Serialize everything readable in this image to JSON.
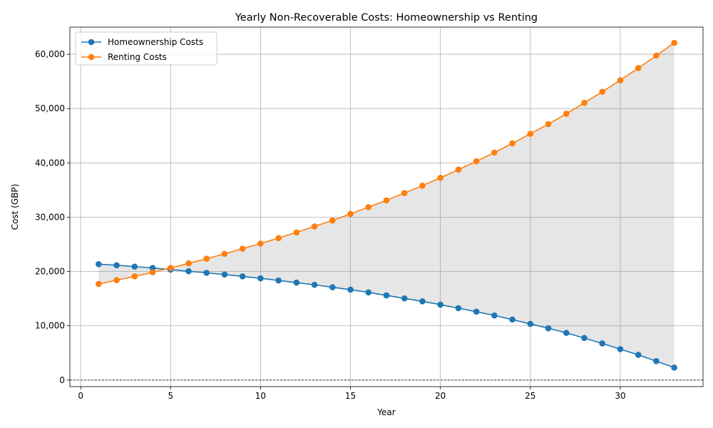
{
  "chart_data": {
    "type": "line",
    "title": "Yearly Non-Recoverable Costs: Homeownership vs Renting",
    "xlabel": "Year",
    "ylabel": "Cost (GBP)",
    "xlim": [
      -0.6,
      34.6
    ],
    "ylim": [
      -1200,
      65000
    ],
    "xticks": [
      0,
      5,
      10,
      15,
      20,
      25,
      30
    ],
    "yticks": [
      0,
      10000,
      20000,
      30000,
      40000,
      50000,
      60000
    ],
    "ytick_labels": [
      "0",
      "10,000",
      "20,000",
      "30,000",
      "40,000",
      "50,000",
      "60,000"
    ],
    "grid": true,
    "legend_position": "top-left",
    "fill_between": true,
    "zero_reference_line": true,
    "x": [
      1,
      2,
      3,
      4,
      5,
      6,
      7,
      8,
      9,
      10,
      11,
      12,
      13,
      14,
      15,
      16,
      17,
      18,
      19,
      20,
      21,
      22,
      23,
      24,
      25,
      26,
      27,
      28,
      29,
      30,
      31,
      32,
      33
    ],
    "series": [
      {
        "name": "Homeownership Costs",
        "color": "#1f77b4",
        "values": [
          21350,
          21150,
          20900,
          20650,
          20350,
          20050,
          19750,
          19450,
          19100,
          18750,
          18350,
          17950,
          17550,
          17100,
          16650,
          16150,
          15600,
          15050,
          14500,
          13900,
          13250,
          12600,
          11900,
          11150,
          10350,
          9550,
          8700,
          7750,
          6750,
          5700,
          4650,
          3500,
          2300
        ]
      },
      {
        "name": "Renting Costs",
        "color": "#ff7f0e",
        "values": [
          17700,
          18400,
          19100,
          19850,
          20650,
          21500,
          22350,
          23250,
          24200,
          25150,
          26150,
          27200,
          28300,
          29400,
          30600,
          31850,
          33100,
          34450,
          35800,
          37250,
          38750,
          40300,
          41900,
          43600,
          45350,
          47150,
          49050,
          51050,
          53100,
          55200,
          57450,
          59750,
          62100
        ]
      }
    ]
  }
}
